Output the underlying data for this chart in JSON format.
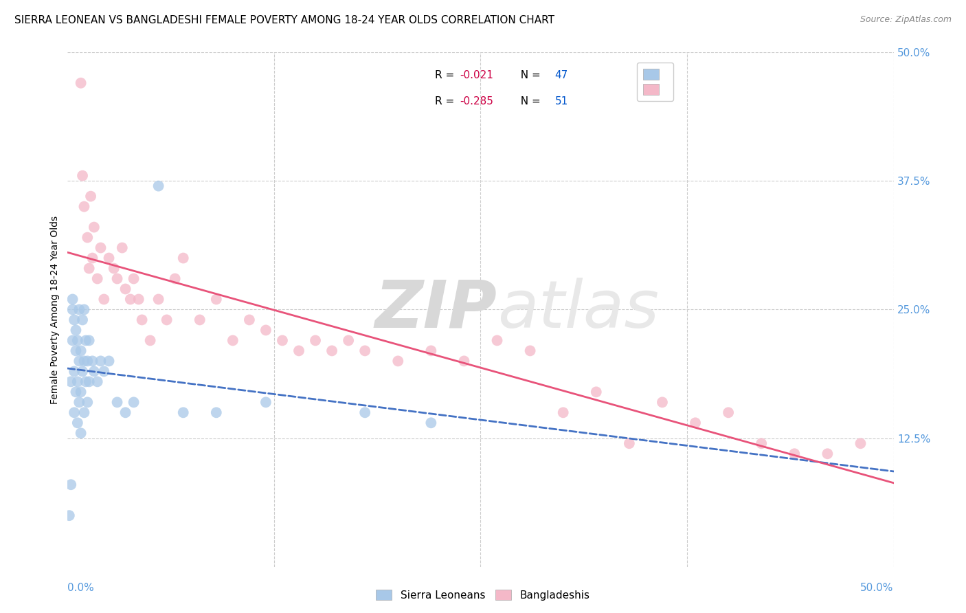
{
  "title": "SIERRA LEONEAN VS BANGLADESHI FEMALE POVERTY AMONG 18-24 YEAR OLDS CORRELATION CHART",
  "source": "Source: ZipAtlas.com",
  "ylabel": "Female Poverty Among 18-24 Year Olds",
  "xlim": [
    0.0,
    0.5
  ],
  "ylim": [
    0.0,
    0.5
  ],
  "watermark_zip": "ZIP",
  "watermark_atlas": "atlas",
  "y_ticks": [
    0.125,
    0.25,
    0.375,
    0.5
  ],
  "y_tick_labels": [
    "12.5%",
    "25.0%",
    "37.5%",
    "50.0%"
  ],
  "x_tick_left": "0.0%",
  "x_tick_right": "50.0%",
  "sl_R": -0.021,
  "sl_N": 47,
  "bd_R": -0.285,
  "bd_N": 51,
  "sl_line_color": "#4472c4",
  "bd_line_color": "#e8537a",
  "sl_scatter_color": "#a8c8e8",
  "bd_scatter_color": "#f4b8c8",
  "background_color": "#ffffff",
  "grid_color": "#cccccc",
  "tick_label_color": "#5599dd",
  "legend_R_color": "#cc0044",
  "legend_N_color": "#0055cc",
  "sl_x": [
    0.001,
    0.002,
    0.002,
    0.003,
    0.003,
    0.003,
    0.004,
    0.004,
    0.004,
    0.005,
    0.005,
    0.005,
    0.006,
    0.006,
    0.006,
    0.007,
    0.007,
    0.007,
    0.008,
    0.008,
    0.008,
    0.009,
    0.009,
    0.01,
    0.01,
    0.01,
    0.011,
    0.011,
    0.012,
    0.012,
    0.013,
    0.013,
    0.015,
    0.016,
    0.018,
    0.02,
    0.022,
    0.025,
    0.03,
    0.035,
    0.04,
    0.055,
    0.07,
    0.09,
    0.12,
    0.18,
    0.22
  ],
  "sl_y": [
    0.05,
    0.08,
    0.18,
    0.22,
    0.25,
    0.26,
    0.15,
    0.19,
    0.24,
    0.17,
    0.21,
    0.23,
    0.14,
    0.18,
    0.22,
    0.16,
    0.2,
    0.25,
    0.13,
    0.17,
    0.21,
    0.19,
    0.24,
    0.15,
    0.2,
    0.25,
    0.18,
    0.22,
    0.16,
    0.2,
    0.18,
    0.22,
    0.2,
    0.19,
    0.18,
    0.2,
    0.19,
    0.2,
    0.16,
    0.15,
    0.16,
    0.37,
    0.15,
    0.15,
    0.16,
    0.15,
    0.14
  ],
  "bd_x": [
    0.008,
    0.009,
    0.01,
    0.012,
    0.013,
    0.014,
    0.015,
    0.016,
    0.018,
    0.02,
    0.022,
    0.025,
    0.028,
    0.03,
    0.033,
    0.035,
    0.038,
    0.04,
    0.043,
    0.045,
    0.05,
    0.055,
    0.06,
    0.065,
    0.07,
    0.08,
    0.09,
    0.1,
    0.11,
    0.12,
    0.13,
    0.14,
    0.15,
    0.16,
    0.17,
    0.18,
    0.2,
    0.22,
    0.24,
    0.26,
    0.28,
    0.3,
    0.32,
    0.34,
    0.36,
    0.38,
    0.4,
    0.42,
    0.44,
    0.46,
    0.48
  ],
  "bd_y": [
    0.47,
    0.38,
    0.35,
    0.32,
    0.29,
    0.36,
    0.3,
    0.33,
    0.28,
    0.31,
    0.26,
    0.3,
    0.29,
    0.28,
    0.31,
    0.27,
    0.26,
    0.28,
    0.26,
    0.24,
    0.22,
    0.26,
    0.24,
    0.28,
    0.3,
    0.24,
    0.26,
    0.22,
    0.24,
    0.23,
    0.22,
    0.21,
    0.22,
    0.21,
    0.22,
    0.21,
    0.2,
    0.21,
    0.2,
    0.22,
    0.21,
    0.15,
    0.17,
    0.12,
    0.16,
    0.14,
    0.15,
    0.12,
    0.11,
    0.11,
    0.12
  ]
}
